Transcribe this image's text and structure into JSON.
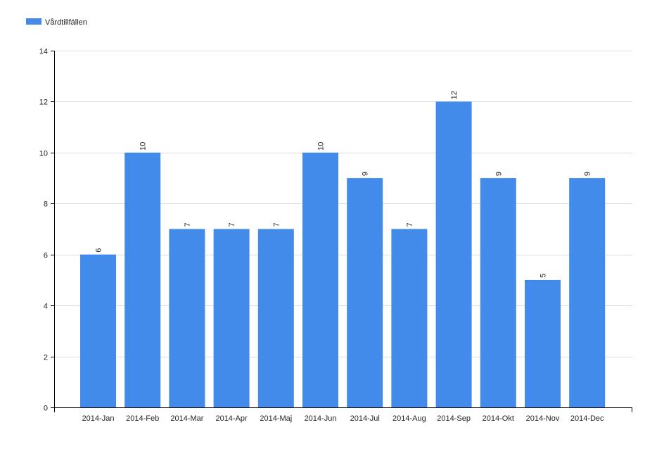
{
  "chart_data": {
    "type": "bar",
    "categories": [
      "2014-Jan",
      "2014-Feb",
      "2014-Mar",
      "2014-Apr",
      "2014-Maj",
      "2014-Jun",
      "2014-Jul",
      "2014-Aug",
      "2014-Sep",
      "2014-Okt",
      "2014-Nov",
      "2014-Dec"
    ],
    "series": [
      {
        "name": "Vårdtillfällen",
        "color": "#428bea",
        "values": [
          6,
          10,
          7,
          7,
          7,
          10,
          9,
          7,
          12,
          9,
          5,
          9
        ]
      }
    ],
    "title": "",
    "xlabel": "",
    "ylabel": "",
    "ylim": [
      0,
      14
    ],
    "yticks": [
      "0",
      "2",
      "4",
      "6",
      "8",
      "10",
      "12",
      "14"
    ],
    "grid": true,
    "legend": "top-left",
    "data_labels": true
  }
}
